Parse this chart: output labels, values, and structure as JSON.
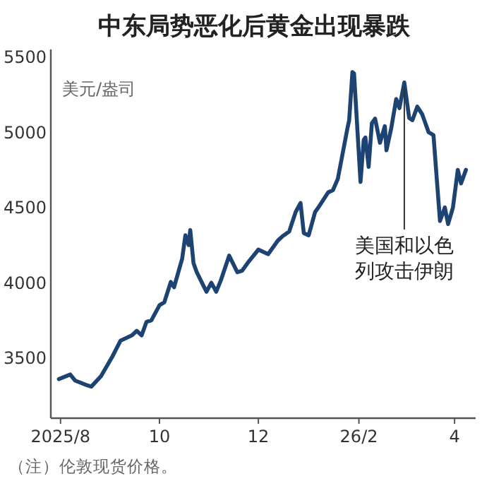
{
  "chart_data": {
    "type": "line",
    "title": "中东局势恶化后黄金出现暴跌",
    "ylabel": "美元/盎司",
    "x": [
      "2025-07-31",
      "2025-08-07",
      "2025-08-10",
      "2025-08-17",
      "2025-08-20",
      "2025-08-26",
      "2025-09-02",
      "2025-09-07",
      "2025-09-14",
      "2025-09-17",
      "2025-09-20",
      "2025-09-23",
      "2025-09-26",
      "2025-10-01",
      "2025-10-04",
      "2025-10-08",
      "2025-10-10",
      "2025-10-15",
      "2025-10-17",
      "2025-10-19",
      "2025-10-20",
      "2025-10-22",
      "2025-10-24",
      "2025-10-27",
      "2025-10-30",
      "2025-11-02",
      "2025-11-05",
      "2025-11-08",
      "2025-11-13",
      "2025-11-18",
      "2025-11-21",
      "2025-11-25",
      "2025-12-01",
      "2025-12-07",
      "2025-12-13",
      "2025-12-16",
      "2025-12-20",
      "2025-12-24",
      "2025-12-27",
      "2025-12-29",
      "2026-01-01",
      "2026-01-05",
      "2026-01-07",
      "2026-01-13",
      "2026-01-16",
      "2026-01-19",
      "2026-01-22",
      "2026-01-25",
      "2026-01-26",
      "2026-01-28",
      "2026-01-29",
      "2026-02-02",
      "2026-02-04",
      "2026-02-05",
      "2026-02-07",
      "2026-02-09",
      "2026-02-11",
      "2026-02-14",
      "2026-02-17",
      "2026-02-18",
      "2026-02-21",
      "2026-02-24",
      "2026-02-26",
      "2026-03-01",
      "2026-03-04",
      "2026-03-06",
      "2026-03-09",
      "2026-03-12",
      "2026-03-16",
      "2026-03-19",
      "2026-03-23",
      "2026-03-26",
      "2026-03-28",
      "2026-03-31",
      "2026-04-03",
      "2026-04-05",
      "2026-04-08"
    ],
    "series": [
      {
        "color": "#1d4373",
        "values": [
          3360,
          3390,
          3350,
          3320,
          3310,
          3380,
          3510,
          3615,
          3650,
          3680,
          3650,
          3740,
          3750,
          3850,
          3870,
          4005,
          3970,
          4160,
          4315,
          4250,
          4350,
          4130,
          4070,
          4005,
          3940,
          4000,
          3940,
          4020,
          4180,
          4070,
          4080,
          4140,
          4220,
          4190,
          4280,
          4310,
          4340,
          4470,
          4530,
          4330,
          4315,
          4470,
          4500,
          4600,
          4615,
          4690,
          4860,
          5030,
          5080,
          5400,
          5390,
          4670,
          4950,
          4965,
          4770,
          5060,
          5090,
          4930,
          5040,
          4880,
          5030,
          5220,
          5160,
          5330,
          5095,
          5080,
          5170,
          5120,
          5000,
          4980,
          4410,
          4500,
          4390,
          4500,
          4750,
          4660,
          4750
        ]
      }
    ],
    "xlim": [
      "2025-07-26",
      "2026-04-14"
    ],
    "xticks": [
      {
        "value": "2025-08-01",
        "label": "2025/8"
      },
      {
        "value": "2025-10-01",
        "label": "10"
      },
      {
        "value": "2025-12-01",
        "label": "12"
      },
      {
        "value": "2026-02-01",
        "label": "26/2"
      },
      {
        "value": "2026-04-01",
        "label": "4"
      }
    ],
    "ylim": [
      3100,
      5550
    ],
    "yticks": [
      3500,
      4000,
      4500,
      5000,
      5500
    ],
    "marker": "none",
    "line_style": "solid",
    "annotations": [
      {
        "text": "美国和以色列攻击伊朗",
        "x": "2026-03-01",
        "y": 5330
      },
      "（注）伦敦现货价格。"
    ]
  }
}
